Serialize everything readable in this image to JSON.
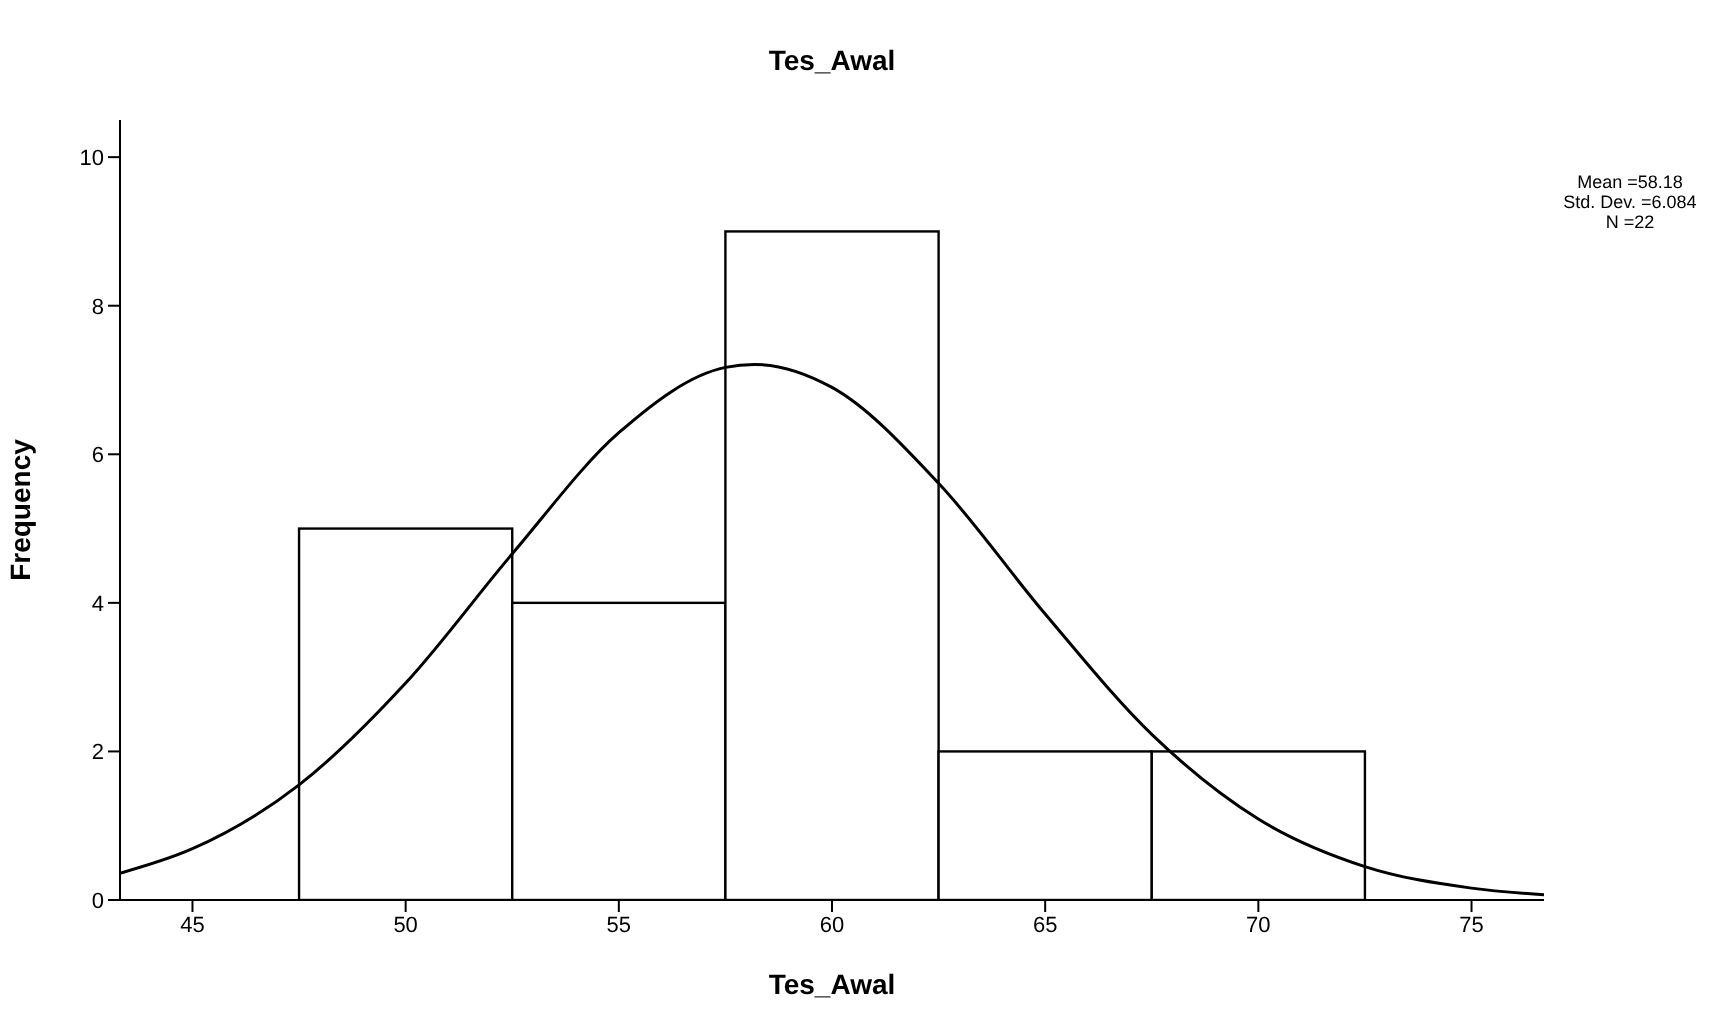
{
  "chart_data": {
    "type": "histogram",
    "title": "Tes_Awal",
    "xlabel": "Tes_Awal",
    "ylabel": "Frequency",
    "bins": [
      47.5,
      52.5,
      57.5,
      62.5,
      67.5,
      72.5
    ],
    "values": [
      5,
      4,
      9,
      2,
      2
    ],
    "color": "#ffffff",
    "series": [
      {
        "type": "line",
        "color": "#000000",
        "x": [
          43.3,
          45,
          47.5,
          50,
          52.5,
          55,
          57.5,
          58.18,
          60,
          62.5,
          65,
          67.5,
          70,
          72.5,
          75,
          76.7
        ],
        "values": [
          0.36,
          0.69,
          1.55,
          2.92,
          4.66,
          6.29,
          7.17,
          7.21,
          6.9,
          5.61,
          3.85,
          2.23,
          1.09,
          0.45,
          0.16,
          0.07
        ]
      }
    ],
    "xlim": [
      43.3,
      76.7
    ],
    "xticks": [
      45,
      50,
      55,
      60,
      65,
      70,
      75
    ],
    "ylim": [
      0,
      10.5
    ],
    "yticks": [
      0,
      2,
      4,
      6,
      8,
      10
    ],
    "annotations": [
      "Mean =58.18",
      "Std. Dev. =6.084",
      "N =22"
    ],
    "grid": false,
    "legend": false
  }
}
